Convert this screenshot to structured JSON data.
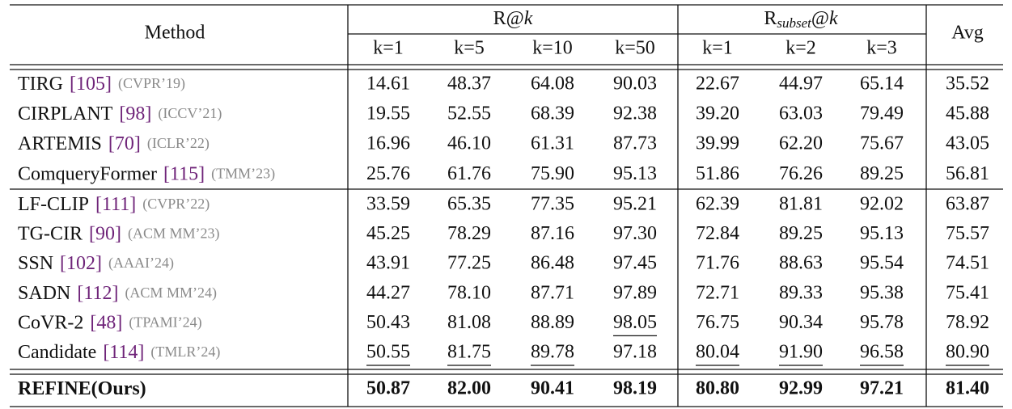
{
  "table": {
    "header": {
      "method": "Method",
      "group1": {
        "text": "R@",
        "var": "k"
      },
      "group2": {
        "text": "R",
        "sub": "subset",
        "after": "@",
        "var": "k"
      },
      "avg": "Avg",
      "columns": [
        "k=1",
        "k=5",
        "k=10",
        "k=50",
        "k=1",
        "k=2",
        "k=3"
      ]
    },
    "groups": [
      {
        "rows": [
          {
            "method": "TIRG",
            "ref": "[105]",
            "venue": "(CVPR’19)",
            "values": [
              "14.61",
              "48.37",
              "64.08",
              "90.03",
              "22.67",
              "44.97",
              "65.14",
              "35.52"
            ]
          },
          {
            "method": "CIRPLANT",
            "ref": "[98]",
            "venue": "(ICCV’21)",
            "values": [
              "19.55",
              "52.55",
              "68.39",
              "92.38",
              "39.20",
              "63.03",
              "79.49",
              "45.88"
            ]
          },
          {
            "method": "ARTEMIS",
            "ref": "[70]",
            "venue": "(ICLR’22)",
            "values": [
              "16.96",
              "46.10",
              "61.31",
              "87.73",
              "39.99",
              "62.20",
              "75.67",
              "43.05"
            ]
          },
          {
            "method": "ComqueryFormer",
            "ref": "[115]",
            "venue": "(TMM’23)",
            "values": [
              "25.76",
              "61.76",
              "75.90",
              "95.13",
              "51.86",
              "76.26",
              "89.25",
              "56.81"
            ]
          }
        ]
      },
      {
        "rows": [
          {
            "method": "LF-CLIP",
            "ref": "[111]",
            "venue": "(CVPR’22)",
            "values": [
              "33.59",
              "65.35",
              "77.35",
              "95.21",
              "62.39",
              "81.81",
              "92.02",
              "63.87"
            ]
          },
          {
            "method": "TG-CIR",
            "ref": "[90]",
            "venue": "(ACM MM’23)",
            "values": [
              "45.25",
              "78.29",
              "87.16",
              "97.30",
              "72.84",
              "89.25",
              "95.13",
              "75.57"
            ]
          },
          {
            "method": "SSN",
            "ref": "[102]",
            "venue": "(AAAI’24)",
            "values": [
              "43.91",
              "77.25",
              "86.48",
              "97.45",
              "71.76",
              "88.63",
              "95.54",
              "74.51"
            ]
          },
          {
            "method": "SADN",
            "ref": "[112]",
            "venue": "(ACM MM’24)",
            "values": [
              "44.27",
              "78.10",
              "87.71",
              "97.89",
              "72.71",
              "89.33",
              "95.38",
              "75.41"
            ]
          },
          {
            "method": "CoVR-2",
            "ref": "[48]",
            "venue": "(TPAMI’24)",
            "values": [
              "50.43",
              "81.08",
              "88.89",
              "98.05",
              "76.75",
              "90.34",
              "95.78",
              "78.92"
            ],
            "underline": [
              3
            ]
          },
          {
            "method": "Candidate",
            "ref": "[114]",
            "venue": "(TMLR’24)",
            "values": [
              "50.55",
              "81.75",
              "89.78",
              "97.18",
              "80.04",
              "91.90",
              "96.58",
              "80.90"
            ],
            "underline": [
              0,
              1,
              2,
              4,
              5,
              6,
              7
            ]
          }
        ]
      },
      {
        "rows": [
          {
            "method": "REFINE(Ours)",
            "values": [
              "50.87",
              "82.00",
              "90.41",
              "98.19",
              "80.80",
              "92.99",
              "97.21",
              "81.40"
            ],
            "bold": true
          }
        ]
      }
    ]
  }
}
